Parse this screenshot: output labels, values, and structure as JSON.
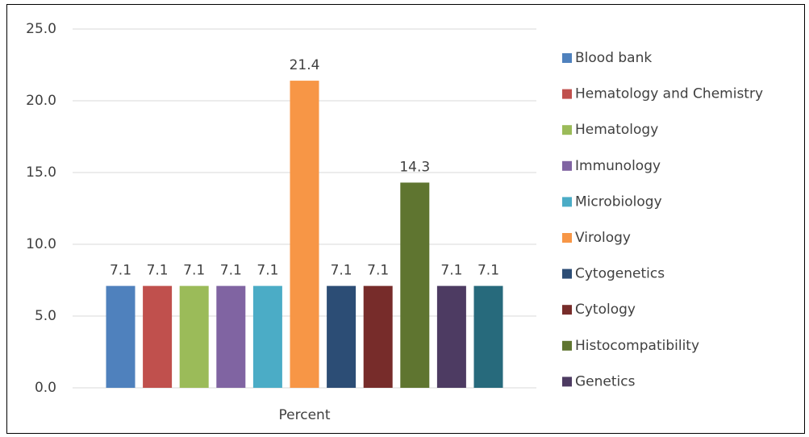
{
  "chart_data": {
    "type": "bar",
    "categories": [
      "Percent"
    ],
    "series": [
      {
        "name": "Blood bank",
        "color": "#4f81bd",
        "values": [
          7.1
        ]
      },
      {
        "name": "Hematology and Chemistry",
        "color": "#c0504d",
        "values": [
          7.1
        ]
      },
      {
        "name": "Hematology",
        "color": "#9bbb59",
        "values": [
          7.1
        ]
      },
      {
        "name": "Immunology",
        "color": "#8064a2",
        "values": [
          7.1
        ]
      },
      {
        "name": "Microbiology",
        "color": "#4bacc6",
        "values": [
          7.1
        ]
      },
      {
        "name": "Virology",
        "color": "#f79646",
        "values": [
          21.4
        ]
      },
      {
        "name": "Cytogenetics",
        "color": "#2c4d75",
        "values": [
          7.1
        ]
      },
      {
        "name": "Cytology",
        "color": "#772c2a",
        "values": [
          7.1
        ]
      },
      {
        "name": "Histocompatibility",
        "color": "#5f7530",
        "values": [
          14.3
        ]
      },
      {
        "name": "Genetics",
        "color": "#4d3b62",
        "values": [
          7.1
        ]
      },
      {
        "name": null,
        "color": "#276a7c",
        "values": [
          7.1
        ]
      }
    ],
    "ylim": [
      0,
      25
    ],
    "yticks": [
      {
        "value": 0,
        "label": "0.0"
      },
      {
        "value": 5,
        "label": "5.0"
      },
      {
        "value": 10,
        "label": "10.0"
      },
      {
        "value": 15,
        "label": "15.0"
      },
      {
        "value": 20,
        "label": "20.0"
      },
      {
        "value": 25,
        "label": "25.0"
      }
    ],
    "grid": true,
    "legend": "right"
  }
}
